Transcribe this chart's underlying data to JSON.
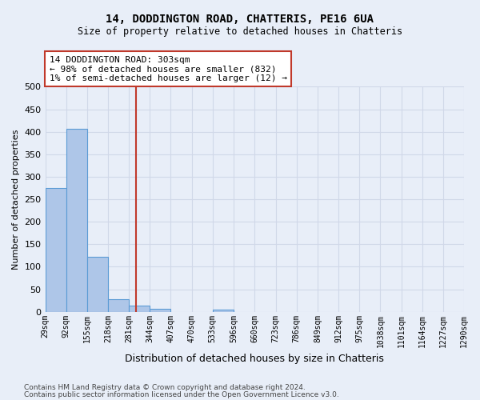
{
  "title1": "14, DODDINGTON ROAD, CHATTERIS, PE16 6UA",
  "title2": "Size of property relative to detached houses in Chatteris",
  "xlabel": "Distribution of detached houses by size in Chatteris",
  "ylabel": "Number of detached properties",
  "bin_edges": [
    29,
    92,
    155,
    218,
    281,
    344,
    407,
    470,
    533,
    596,
    660,
    723,
    786,
    849,
    912,
    975,
    1038,
    1101,
    1164,
    1227,
    1290
  ],
  "bar_heights": [
    275,
    407,
    122,
    28,
    14,
    7,
    0,
    0,
    5,
    0,
    0,
    0,
    0,
    0,
    0,
    0,
    0,
    0,
    0,
    0
  ],
  "bar_color": "#aec6e8",
  "bar_edge_color": "#5b9bd5",
  "property_size": 303,
  "vline_color": "#c0392b",
  "annotation_line1": "14 DODDINGTON ROAD: 303sqm",
  "annotation_line2": "← 98% of detached houses are smaller (832)",
  "annotation_line3": "1% of semi-detached houses are larger (12) →",
  "annotation_box_color": "#c0392b",
  "ylim": [
    0,
    500
  ],
  "yticks": [
    0,
    50,
    100,
    150,
    200,
    250,
    300,
    350,
    400,
    450,
    500
  ],
  "grid_color": "#d0d8e8",
  "footer1": "Contains HM Land Registry data © Crown copyright and database right 2024.",
  "footer2": "Contains public sector information licensed under the Open Government Licence v3.0.",
  "bg_color": "#e8eef8",
  "plot_bg_color": "#e8eef8"
}
